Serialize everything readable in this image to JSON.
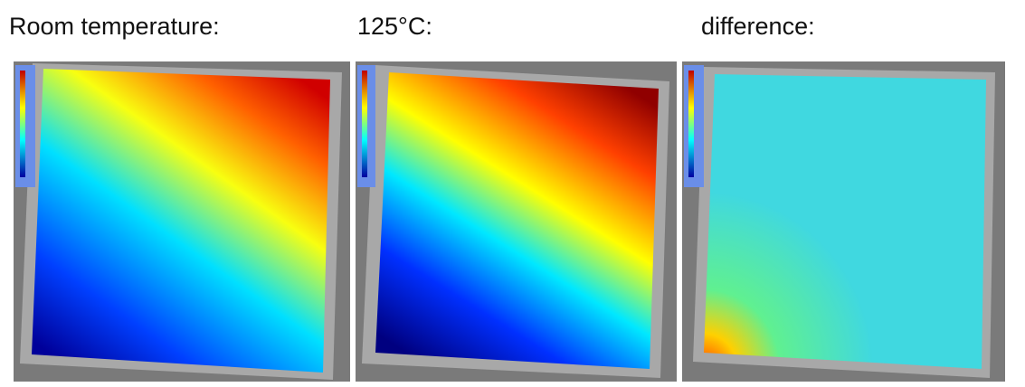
{
  "panels": [
    {
      "label": "Room temperature:"
    },
    {
      "label": "125°C:"
    },
    {
      "label": "difference:"
    }
  ]
}
